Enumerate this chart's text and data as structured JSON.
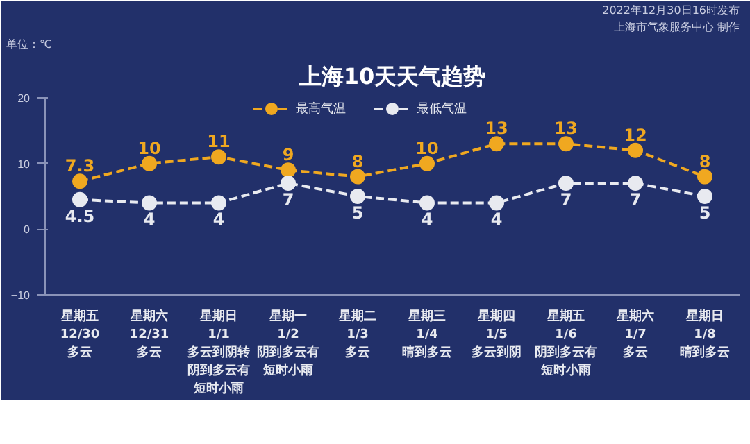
{
  "chart_data": {
    "type": "line",
    "title": "上海10天天气趋势",
    "ylabel": "单位：℃",
    "annotations": [
      "2022年12月30日16时发布",
      "上海市气象服务中心 制作"
    ],
    "categories": [
      "星期五\n12/30\n多云",
      "星期六\n12/31\n多云",
      "星期日\n1/1\n多云到阴转阴到多云有短时小雨",
      "星期一\n1/2\n阴到多云有短时小雨",
      "星期二\n1/3\n多云",
      "星期三\n1/4\n晴到多云",
      "星期四\n1/5\n多云到阴",
      "星期五\n1/6\n阴到多云有短时小雨",
      "星期六\n1/7\n多云",
      "星期日\n1/8\n晴到多云"
    ],
    "series": [
      {
        "name": "最高气温",
        "color": "#f0a820",
        "values": [
          7.3,
          10,
          11,
          9,
          8,
          10,
          13,
          13,
          12,
          8
        ]
      },
      {
        "name": "最低气温",
        "color": "#e8eaf0",
        "values": [
          4.5,
          4,
          4,
          7,
          5,
          4,
          4,
          7,
          7,
          5
        ]
      }
    ],
    "ylim": [
      -10,
      20
    ],
    "yticks": [
      -10,
      0,
      10,
      20
    ],
    "grid": false,
    "legend": "top",
    "marker": "circle",
    "line_style": "dashed",
    "data_labels": true
  }
}
